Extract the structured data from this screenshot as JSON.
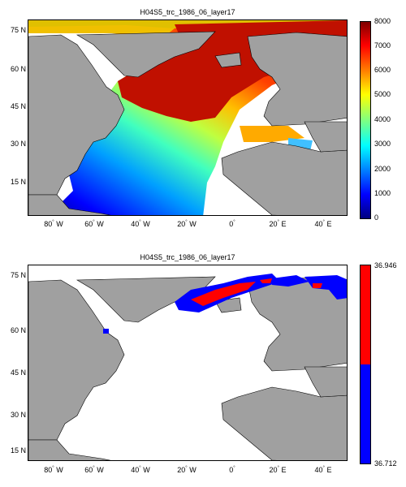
{
  "top_panel": {
    "title": "H04S5_trc_1986_06_layer17",
    "lat_labels": [
      "75",
      "60",
      "45",
      "30",
      "15"
    ],
    "lon_labels": [
      "80",
      "60",
      "40",
      "20",
      "0",
      "20",
      "40"
    ],
    "lon_hemis": [
      "W",
      "W",
      "W",
      "W",
      "",
      "E",
      "E"
    ],
    "lat_hemi": "N",
    "colorbar_ticks": [
      "8000",
      "7000",
      "6000",
      "5000",
      "4000",
      "3000",
      "2000",
      "1000",
      "0"
    ],
    "colorbar_range": [
      0,
      8000
    ],
    "colormap": "jet"
  },
  "bottom_panel": {
    "title": "H04S5_trc_1986_06_layer17",
    "lat_labels": [
      "75",
      "60",
      "45",
      "30",
      "15"
    ],
    "lon_labels": [
      "80",
      "60",
      "40",
      "20",
      "0",
      "20",
      "40"
    ],
    "lon_hemis": [
      "W",
      "W",
      "W",
      "W",
      "",
      "E",
      "E"
    ],
    "lat_hemi": "N",
    "colorbar_top": "36.946",
    "colorbar_bottom": "36.712",
    "colors": {
      "high": "#ff0000",
      "low": "#0000ff"
    }
  },
  "colors": {
    "land": "#a0a0a0",
    "ocean_empty": "#ffffff",
    "coastline": "#000000"
  }
}
